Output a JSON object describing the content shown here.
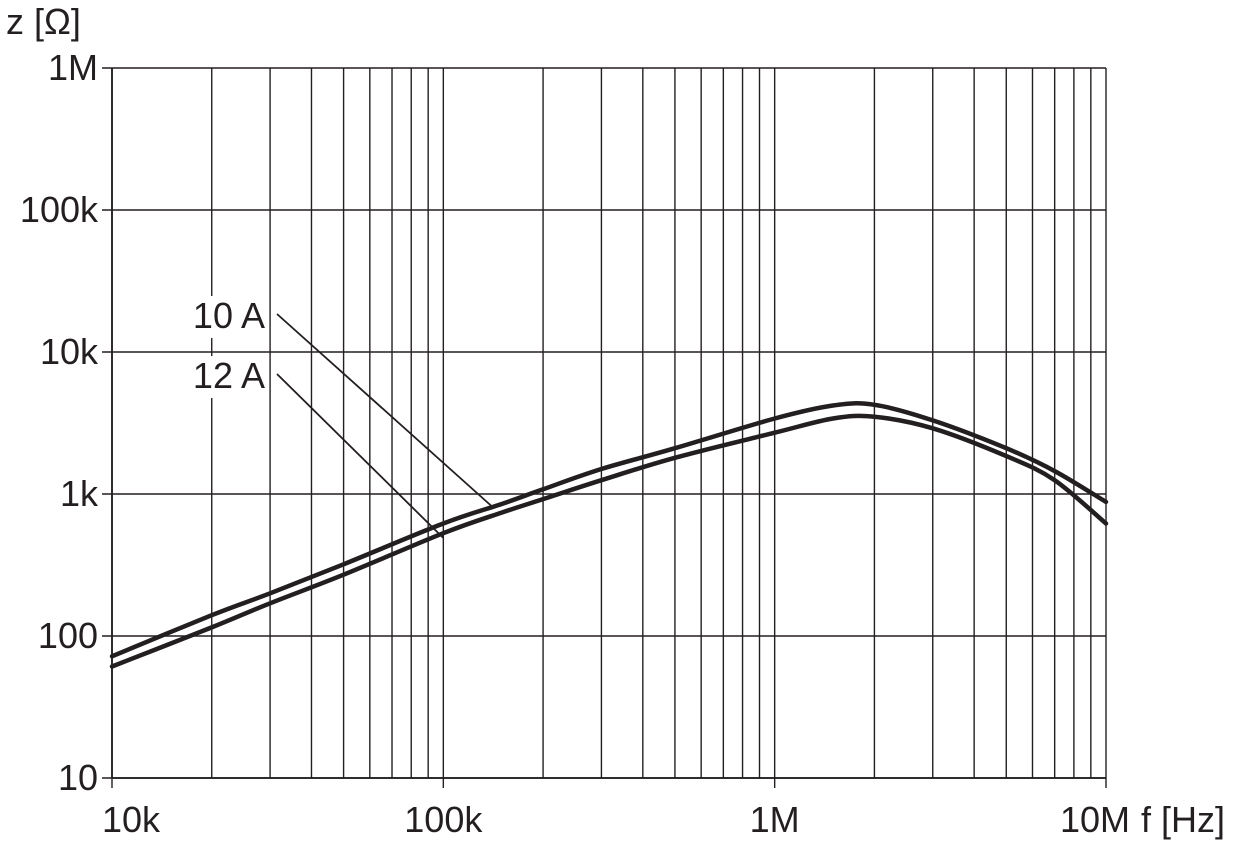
{
  "chart_data": {
    "type": "line",
    "xscale": "log",
    "yscale": "log",
    "xlim": [
      10000,
      10000000
    ],
    "ylim": [
      10,
      1000000
    ],
    "xlabel": "f [Hz]",
    "ylabel": "z [Ω]",
    "x_ticks": [
      {
        "value": 10000,
        "label": "10k"
      },
      {
        "value": 100000,
        "label": "100k"
      },
      {
        "value": 1000000,
        "label": "1M"
      },
      {
        "value": 10000000,
        "label": "10M"
      }
    ],
    "y_ticks": [
      {
        "value": 10,
        "label": "10"
      },
      {
        "value": 100,
        "label": "100"
      },
      {
        "value": 1000,
        "label": "1k"
      },
      {
        "value": 10000,
        "label": "10k"
      },
      {
        "value": 100000,
        "label": "100k"
      },
      {
        "value": 1000000,
        "label": "1M"
      }
    ],
    "grid": true,
    "colors": {
      "ink": "#231f20",
      "background": "#ffffff"
    },
    "series": [
      {
        "name": "10 A",
        "x": [
          10000,
          20000,
          30000,
          50000,
          100000,
          150000,
          200000,
          300000,
          500000,
          1000000,
          1500000,
          2000000,
          3000000,
          5000000,
          7000000,
          10000000
        ],
        "y": [
          72,
          140,
          200,
          320,
          620,
          850,
          1080,
          1500,
          2100,
          3400,
          4200,
          4250,
          3300,
          2100,
          1450,
          880
        ]
      },
      {
        "name": "12 A",
        "x": [
          10000,
          20000,
          30000,
          50000,
          100000,
          150000,
          200000,
          300000,
          500000,
          1000000,
          1500000,
          2000000,
          3000000,
          5000000,
          7000000,
          10000000
        ],
        "y": [
          61,
          115,
          170,
          270,
          530,
          740,
          920,
          1250,
          1800,
          2700,
          3400,
          3500,
          2900,
          1850,
          1250,
          620
        ]
      }
    ],
    "annotations": [
      {
        "text": "10 A",
        "series": "10 A",
        "points_to": {
          "x": 140000,
          "y": 820
        }
      },
      {
        "text": "12 A",
        "series": "12 A",
        "points_to": {
          "x": 100000,
          "y": 490
        }
      }
    ]
  }
}
